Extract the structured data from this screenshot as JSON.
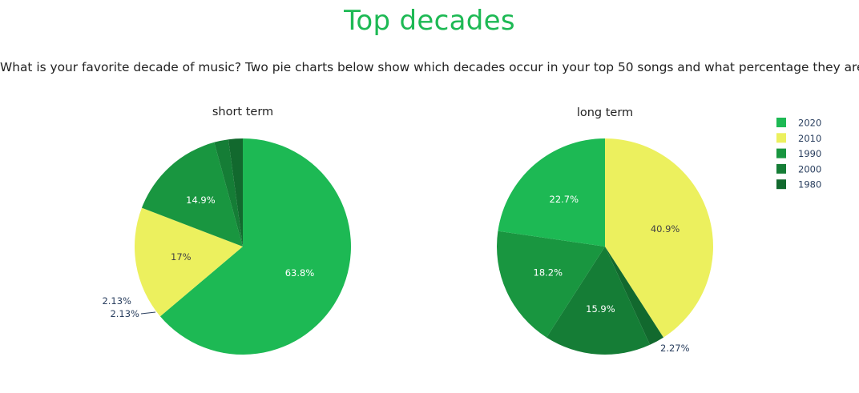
{
  "page": {
    "title": "Top decades",
    "description": "What is your favorite decade of music? Two pie charts below show which decades occur in your top 50 songs and what percentage they are."
  },
  "colors": {
    "2020": "#1db954",
    "2010": "#ecf05e",
    "1990": "#199640",
    "2000": "#157d36",
    "1980": "#12692e",
    "title": "#1db954"
  },
  "legend": {
    "items": [
      "2020",
      "2010",
      "1990",
      "2000",
      "1980"
    ]
  },
  "chart_data": [
    {
      "type": "pie",
      "title": "short term",
      "slices": [
        {
          "label": "2020",
          "value": 63.8,
          "text": "63.8%"
        },
        {
          "label": "2010",
          "value": 17,
          "text": "17%"
        },
        {
          "label": "1990",
          "value": 14.9,
          "text": "14.9%"
        },
        {
          "label": "2000",
          "value": 2.13,
          "text": "2.13%"
        },
        {
          "label": "1980",
          "value": 2.13,
          "text": "2.13%"
        }
      ]
    },
    {
      "type": "pie",
      "title": "long term",
      "slices": [
        {
          "label": "2010",
          "value": 40.9,
          "text": "40.9%"
        },
        {
          "label": "1980",
          "value": 2.27,
          "text": "2.27%"
        },
        {
          "label": "2000",
          "value": 15.9,
          "text": "15.9%"
        },
        {
          "label": "1990",
          "value": 18.2,
          "text": "18.2%"
        },
        {
          "label": "2020",
          "value": 22.7,
          "text": "22.7%"
        }
      ]
    }
  ]
}
